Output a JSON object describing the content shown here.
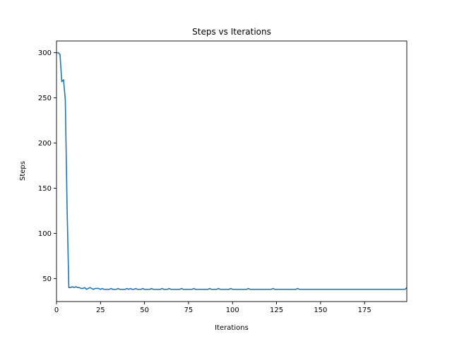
{
  "chart_data": {
    "type": "line",
    "title": "Steps vs Iterations",
    "xlabel": "Iterations",
    "ylabel": "Steps",
    "xlim": [
      0,
      199
    ],
    "ylim": [
      24.5,
      313
    ],
    "xticks": [
      0,
      25,
      50,
      75,
      100,
      125,
      150,
      175
    ],
    "yticks": [
      50,
      100,
      150,
      200,
      250,
      300
    ],
    "grid": false,
    "legend": "none",
    "colors": {
      "line": "#1f77b4",
      "axes": "#000000",
      "background": "#ffffff"
    },
    "series": [
      {
        "values": [
          300,
          300,
          298,
          268,
          270,
          248,
          130,
          40,
          40,
          41,
          40,
          41,
          40,
          40,
          39,
          39,
          40,
          38,
          39,
          40,
          39,
          38,
          39,
          39,
          39,
          38,
          39,
          38,
          38,
          38,
          38,
          39,
          38,
          38,
          38,
          39,
          38,
          38,
          38,
          38,
          39,
          38,
          39,
          38,
          38,
          39,
          38,
          38,
          38,
          39,
          38,
          38,
          38,
          38,
          39,
          38,
          38,
          38,
          38,
          38,
          39,
          38,
          38,
          38,
          39,
          38,
          38,
          38,
          38,
          38,
          38,
          39,
          38,
          38,
          38,
          38,
          38,
          38,
          39,
          38,
          38,
          38,
          38,
          38,
          38,
          38,
          38,
          39,
          38,
          38,
          38,
          38,
          39,
          38,
          38,
          38,
          38,
          38,
          38,
          39,
          38,
          38,
          38,
          38,
          38,
          38,
          38,
          38,
          38,
          39,
          38,
          38,
          38,
          38,
          38,
          38,
          38,
          38,
          38,
          38,
          38,
          38,
          38,
          39,
          38,
          38,
          38,
          38,
          38,
          38,
          38,
          38,
          38,
          38,
          38,
          38,
          38,
          39,
          38,
          38,
          38,
          38,
          38,
          38,
          38,
          38,
          38,
          38,
          38,
          38,
          38,
          38,
          38,
          38,
          38,
          38,
          38,
          38,
          38,
          38,
          38,
          38,
          38,
          38,
          38,
          38,
          38,
          38,
          38,
          38,
          38,
          38,
          38,
          38,
          38,
          38,
          38,
          38,
          38,
          38,
          38,
          38,
          38,
          38,
          38,
          38,
          38,
          38,
          38,
          38,
          38,
          38,
          38,
          38,
          38,
          38,
          38,
          38,
          38,
          40
        ]
      }
    ]
  }
}
